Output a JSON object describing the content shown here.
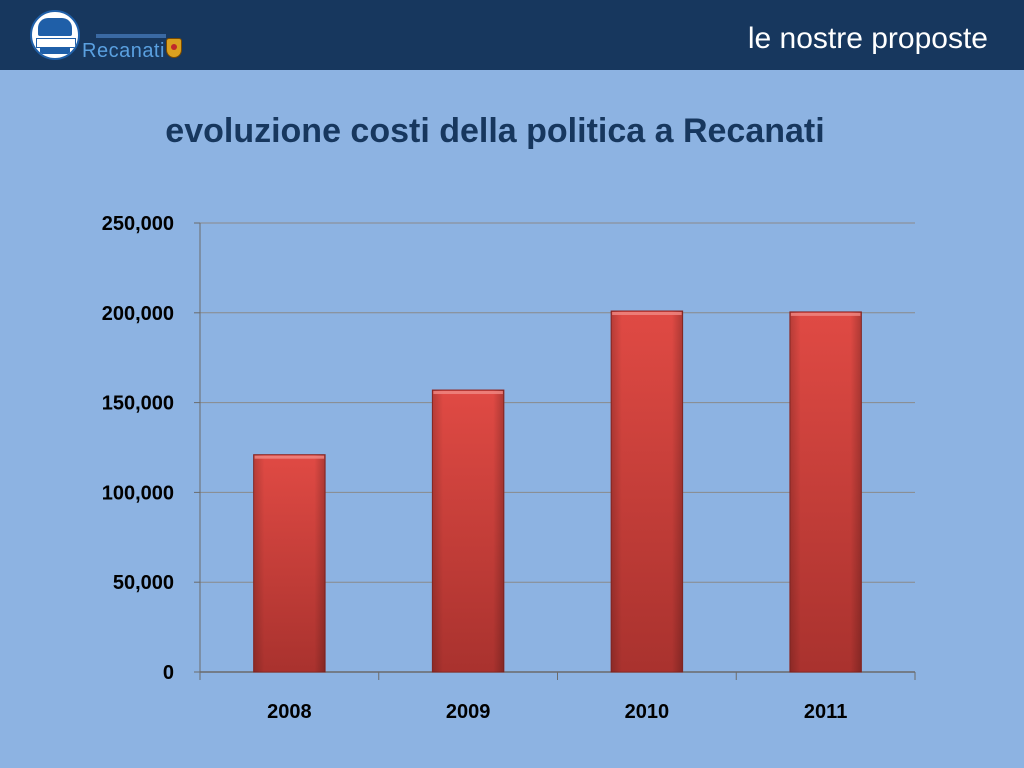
{
  "header": {
    "title": "le nostre proposte",
    "logo": {
      "city": "Recanati",
      "icon": "party-logo-icon",
      "crest_icon": "city-crest-icon"
    },
    "background_color": "#17375e"
  },
  "page_background": "#8db3e2",
  "chart_data": {
    "type": "bar",
    "title": "evoluzione costi della politica a Recanati",
    "categories": [
      "2008",
      "2009",
      "2010",
      "2011"
    ],
    "values": [
      121000,
      157000,
      201000,
      200500
    ],
    "ylim": [
      0,
      250000
    ],
    "yticks": [
      0,
      50000,
      100000,
      150000,
      200000,
      250000
    ],
    "ytick_labels": [
      "0",
      "50,000",
      "100,000",
      "150,000",
      "200,000",
      "250,000"
    ],
    "xlabel": "",
    "ylabel": "",
    "grid": true,
    "bar_color": "#d94a45",
    "bar_color_dark": "#a33531",
    "title_color": "#17375e"
  }
}
